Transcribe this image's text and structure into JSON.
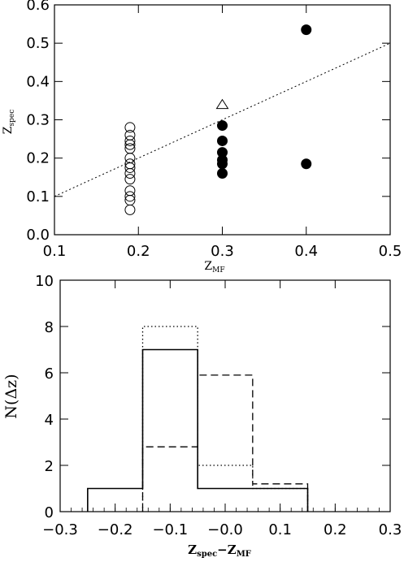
{
  "chart_data": [
    {
      "type": "scatter",
      "xlabel_main": "Z",
      "xlabel_sub": "MF",
      "ylabel_main": "Z",
      "ylabel_sub": "spec",
      "xlim": [
        0.1,
        0.5
      ],
      "ylim": [
        0.0,
        0.6
      ],
      "xticks": [
        "0.1",
        "0.2",
        "0.3",
        "0.4",
        "0.5"
      ],
      "yticks": [
        "0.0",
        "0.1",
        "0.2",
        "0.3",
        "0.4",
        "0.5",
        "0.6"
      ],
      "grid": false,
      "series": [
        {
          "marker": "open-circle",
          "points": [
            [
              0.19,
              0.28
            ],
            [
              0.19,
              0.26
            ],
            [
              0.19,
              0.245
            ],
            [
              0.19,
              0.235
            ],
            [
              0.19,
              0.225
            ],
            [
              0.19,
              0.2
            ],
            [
              0.19,
              0.185
            ],
            [
              0.19,
              0.175
            ],
            [
              0.19,
              0.16
            ],
            [
              0.19,
              0.145
            ],
            [
              0.19,
              0.115
            ],
            [
              0.19,
              0.1
            ],
            [
              0.19,
              0.09
            ],
            [
              0.19,
              0.065
            ]
          ]
        },
        {
          "marker": "filled-circle",
          "points": [
            [
              0.3,
              0.285
            ],
            [
              0.3,
              0.245
            ],
            [
              0.3,
              0.215
            ],
            [
              0.3,
              0.195
            ],
            [
              0.3,
              0.185
            ],
            [
              0.3,
              0.16
            ],
            [
              0.4,
              0.535
            ],
            [
              0.4,
              0.185
            ]
          ]
        },
        {
          "marker": "open-triangle",
          "points": [
            [
              0.3,
              0.34
            ]
          ]
        }
      ],
      "reference_line": {
        "style": "dotted",
        "x": [
          0.1,
          0.5
        ],
        "y": [
          0.1,
          0.5
        ]
      }
    },
    {
      "type": "histogram",
      "xlabel_main": "Z",
      "xlabel_sub1": "spec",
      "xlabel_mid": "−Z",
      "xlabel_sub2": "MF",
      "ylabel": "N(Δz)",
      "xlim": [
        -0.3,
        0.3
      ],
      "ylim": [
        0,
        10
      ],
      "xticks": [
        "−0.3",
        "−0.2",
        "−0.1",
        "−0.0",
        "0.1",
        "0.2",
        "0.3"
      ],
      "yticks": [
        "0",
        "2",
        "4",
        "6",
        "8",
        "10"
      ],
      "series": [
        {
          "style": "solid",
          "bins": [
            [
              -0.25,
              -0.15,
              1
            ],
            [
              -0.15,
              -0.05,
              7
            ],
            [
              -0.05,
              0.05,
              1
            ],
            [
              0.05,
              0.15,
              1
            ]
          ]
        },
        {
          "style": "dashed",
          "bins": [
            [
              -0.15,
              -0.05,
              2.8
            ],
            [
              -0.05,
              0.05,
              5.9
            ],
            [
              0.05,
              0.15,
              1.2
            ]
          ]
        },
        {
          "style": "dotted",
          "bins": [
            [
              -0.15,
              -0.05,
              8
            ],
            [
              -0.05,
              0.05,
              2
            ],
            [
              0.05,
              0.15,
              1
            ]
          ]
        }
      ]
    }
  ]
}
